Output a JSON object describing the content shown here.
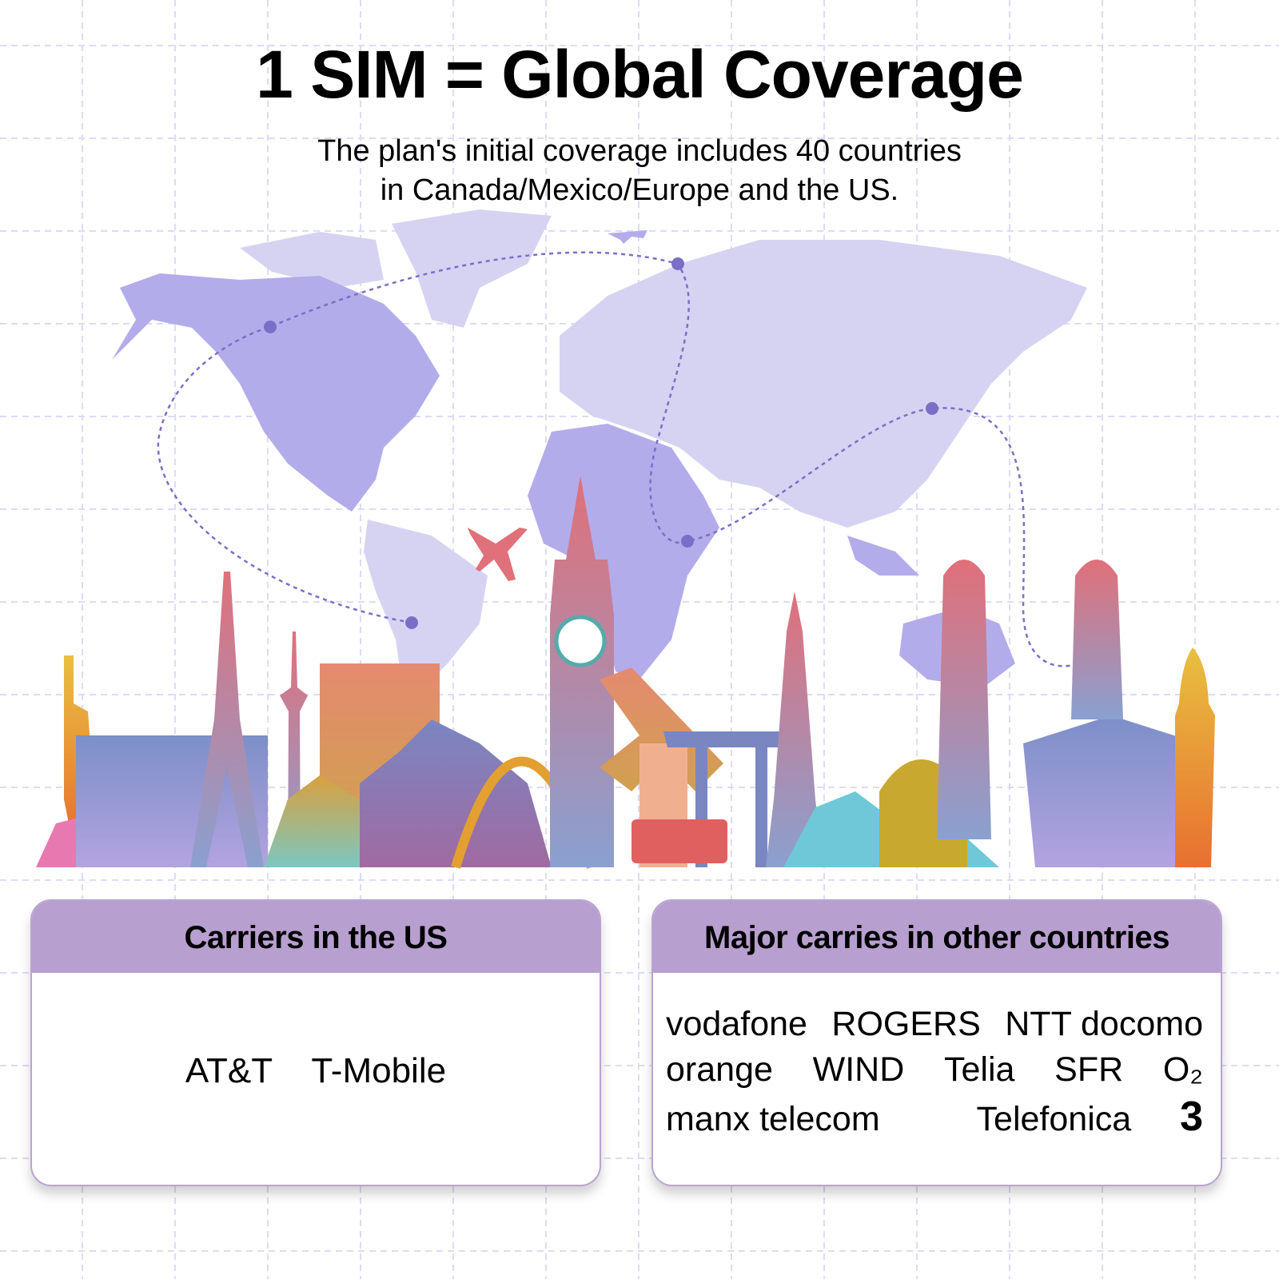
{
  "title": "1 SIM = Global Coverage",
  "subtitle": {
    "line1": "The plan's initial coverage includes 40 countries",
    "line2": "in Canada/Mexico/Europe and the US."
  },
  "colors": {
    "header_band": "#b79fcf",
    "map_highlight": "#b3aceb",
    "map_other": "#d6d3f2",
    "flight_path": "#7a6fc7",
    "grid": "#dcdcf5"
  },
  "us_carriers": {
    "heading": "Carriers in the US",
    "items": [
      "AT&T",
      "T-Mobile"
    ]
  },
  "other_carriers": {
    "heading": "Major carries in other countries",
    "rows": [
      [
        "vodafone",
        "ROGERS",
        "NTT docomo"
      ],
      [
        "orange",
        "WIND",
        "Telia",
        "SFR",
        "O₂"
      ],
      [
        "manx telecom",
        "Telefonica",
        "3"
      ]
    ]
  },
  "icons": [
    "world-map",
    "airplane-icon",
    "landmarks-skyline"
  ]
}
